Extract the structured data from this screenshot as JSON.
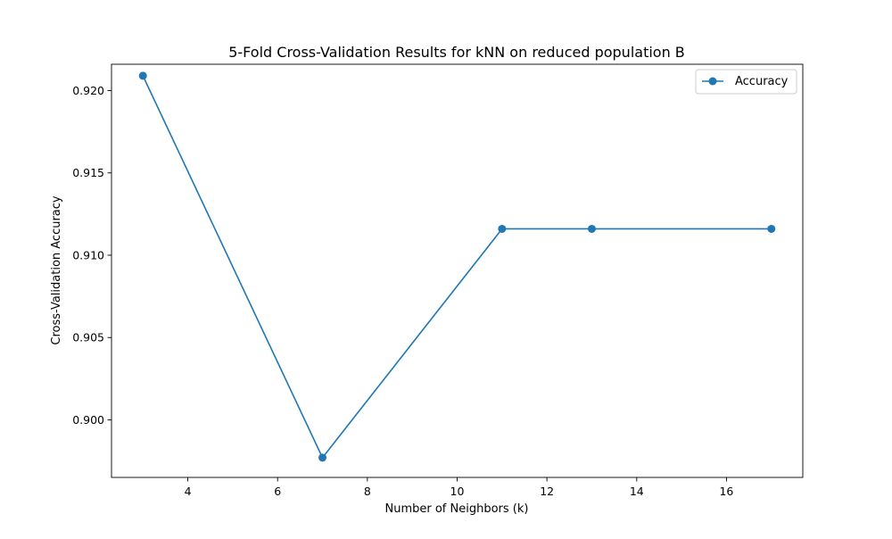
{
  "chart_data": {
    "type": "line",
    "title": "5-Fold Cross-Validation Results for kNN on reduced population B",
    "xlabel": "Number of Neighbors (k)",
    "ylabel": "Cross-Validation Accuracy",
    "xlim": [
      2.3,
      17.7
    ],
    "ylim": [
      0.8965,
      0.9216
    ],
    "xticks": [
      4,
      6,
      8,
      10,
      12,
      14,
      16
    ],
    "yticks": [
      0.9,
      0.905,
      0.91,
      0.915,
      0.92
    ],
    "ytick_labels": [
      "0.900",
      "0.905",
      "0.910",
      "0.915",
      "0.920"
    ],
    "grid": false,
    "legend_position": "top-right",
    "series": [
      {
        "name": "Accuracy",
        "color": "#1f77b4",
        "marker": "circle",
        "x": [
          3,
          7,
          11,
          13,
          17
        ],
        "y": [
          0.9209,
          0.8977,
          0.9116,
          0.9116,
          0.9116
        ]
      }
    ]
  }
}
